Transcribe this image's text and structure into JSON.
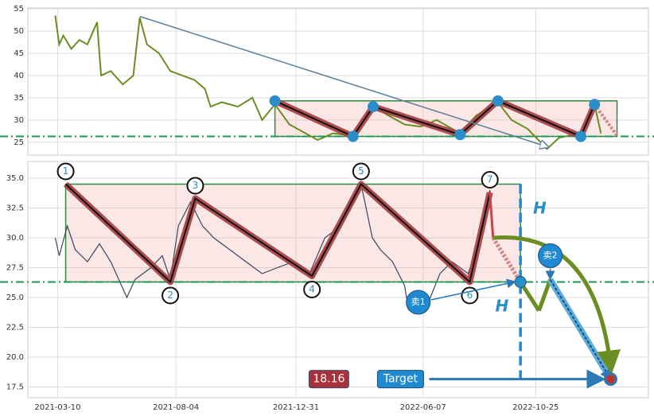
{
  "chart_data": [
    {
      "type": "line",
      "x": [
        "2021-03-07",
        "2021-03-12",
        "2021-03-17",
        "2021-03-27",
        "2021-04-06",
        "2021-04-16",
        "2021-04-28",
        "2021-05-03",
        "2021-05-15",
        "2021-05-30",
        "2021-06-12",
        "2021-06-20",
        "2021-06-29",
        "2021-07-14",
        "2021-07-28",
        "2021-08-12",
        "2021-08-27",
        "2021-09-09",
        "2021-09-16",
        "2021-09-30",
        "2021-10-20",
        "2021-11-07",
        "2021-11-19",
        "2021-12-05",
        "2021-12-23",
        "2022-01-12",
        "2022-01-27",
        "2022-02-15",
        "2022-03-12",
        "2022-04-06",
        "2022-04-25",
        "2022-05-15",
        "2022-06-04",
        "2022-06-24",
        "2022-07-23",
        "2022-08-12",
        "2022-09-08",
        "2022-09-25",
        "2022-10-15",
        "2022-11-08",
        "2022-11-23",
        "2022-12-20",
        "2023-01-06",
        "2023-01-14"
      ],
      "values": [
        53.5,
        47,
        49,
        46,
        48,
        47,
        52,
        40,
        41,
        38,
        40,
        53,
        47,
        45,
        41,
        40,
        39,
        37,
        33,
        34,
        33,
        35,
        30,
        33.5,
        29,
        27,
        25.5,
        27,
        26.5,
        33,
        31,
        29,
        28.5,
        30,
        27,
        31,
        34,
        30,
        28,
        23.5,
        26,
        27,
        33.5,
        27
      ],
      "color": "#6b8e23",
      "xlim": [
        "2021-02-01",
        "2023-03-14"
      ],
      "ylim": [
        22.1,
        55.2
      ],
      "yticks": [
        25,
        30,
        35,
        40,
        45,
        50,
        55
      ],
      "grid": true,
      "zigzag": {
        "x": [
          "2021-12-05",
          "2022-03-12",
          "2022-04-06",
          "2022-07-23",
          "2022-09-08",
          "2022-12-20",
          "2023-01-06"
        ],
        "values": [
          34.3,
          26.3,
          33,
          26.7,
          34.3,
          26.3,
          33.5
        ]
      },
      "zigzag_tail": {
        "x": [
          "2023-01-06",
          "2023-02-03"
        ],
        "values": [
          33.5,
          26.5
        ]
      },
      "box": {
        "x": [
          "2021-12-05",
          "2023-02-03"
        ],
        "values": [
          26.3,
          34.3
        ]
      },
      "support": 26.3,
      "trend_arrow": {
        "x": [
          "2021-06-20",
          "2022-11-08"
        ],
        "values": [
          53.3,
          24
        ]
      }
    },
    {
      "type": "line",
      "x": [
        "2021-03-07",
        "2021-03-12",
        "2021-03-22",
        "2021-04-01",
        "2021-04-16",
        "2021-05-01",
        "2021-05-15",
        "2021-05-25",
        "2021-06-04",
        "2021-06-14",
        "2021-07-04",
        "2021-07-18",
        "2021-07-28",
        "2021-08-07",
        "2021-08-22",
        "2021-09-06",
        "2021-09-20",
        "2021-10-10",
        "2021-10-30",
        "2021-11-19",
        "2021-12-08",
        "2021-12-28",
        "2022-01-17",
        "2022-02-05",
        "2022-02-25",
        "2022-03-12",
        "2022-03-22",
        "2022-04-05",
        "2022-04-15",
        "2022-04-30",
        "2022-05-15",
        "2022-05-20",
        "2022-05-30",
        "2022-06-13",
        "2022-06-28",
        "2022-07-13",
        "2022-08-02",
        "2022-08-12",
        "2022-08-21",
        "2022-08-29",
        "2022-09-02"
      ],
      "values": [
        30,
        28.5,
        31,
        29,
        28,
        29.5,
        28,
        26.5,
        25,
        26.5,
        27.5,
        28.5,
        26.5,
        31,
        33,
        31,
        30,
        29,
        28,
        27,
        27.5,
        28,
        27,
        30,
        31,
        33,
        34.5,
        30,
        29,
        28,
        26,
        24,
        25,
        24.5,
        27,
        28,
        27,
        29,
        31,
        34,
        30
      ],
      "color": "#3a4560",
      "xlim": [
        "2021-02-01",
        "2023-03-14"
      ],
      "ylim": [
        16.6,
        36.4
      ],
      "yticks": [
        {
          "value": 17.5,
          "label": "17.5"
        },
        {
          "value": 20,
          "label": "20.0"
        },
        {
          "value": 22.5,
          "label": "22.5"
        },
        {
          "value": 25,
          "label": "25.0"
        },
        {
          "value": 27.5,
          "label": "27.5"
        },
        {
          "value": 30,
          "label": "30.0"
        },
        {
          "value": 32.5,
          "label": "32.5"
        },
        {
          "value": 35,
          "label": "35.0"
        }
      ],
      "xticks": [
        "2021-03-10",
        "2021-08-04",
        "2021-12-31",
        "2022-06-07",
        "2022-10-25"
      ],
      "grid": true,
      "zigzag": {
        "x": [
          "2021-03-20",
          "2021-07-28",
          "2021-08-28",
          "2022-01-20",
          "2022-03-22",
          "2022-08-04",
          "2022-08-29"
        ],
        "values": [
          34.5,
          26.3,
          33.3,
          26.8,
          34.5,
          26.3,
          33.8
        ],
        "labels": [
          "1",
          "2",
          "3",
          "4",
          "5",
          "6",
          "7"
        ]
      },
      "box": {
        "x": [
          "2021-03-20",
          "2022-10-06"
        ],
        "values": [
          26.3,
          34.5
        ]
      },
      "support": 26.3,
      "projection": {
        "x": [
          "2022-08-29",
          "2022-09-02",
          "2022-10-06",
          "2022-10-29",
          "2022-11-12",
          "2023-01-26"
        ],
        "values": [
          33.8,
          30,
          26.3,
          23.9,
          26.5,
          18.16
        ]
      },
      "target": 18.16,
      "target_label": "Target",
      "target_label_x": "2022-05-10",
      "target_value_x": "2022-02-10",
      "height_label": "H",
      "height_label_points": {
        "x": [
          "2022-10-30",
          "2022-09-13"
        ],
        "values": [
          32.4,
          24.2
        ]
      },
      "sell_labels": {
        "labels": [
          "卖1",
          "卖2"
        ],
        "x": [
          "2022-06-01",
          "2022-11-12"
        ],
        "values": [
          24.6,
          28.5
        ]
      }
    }
  ]
}
